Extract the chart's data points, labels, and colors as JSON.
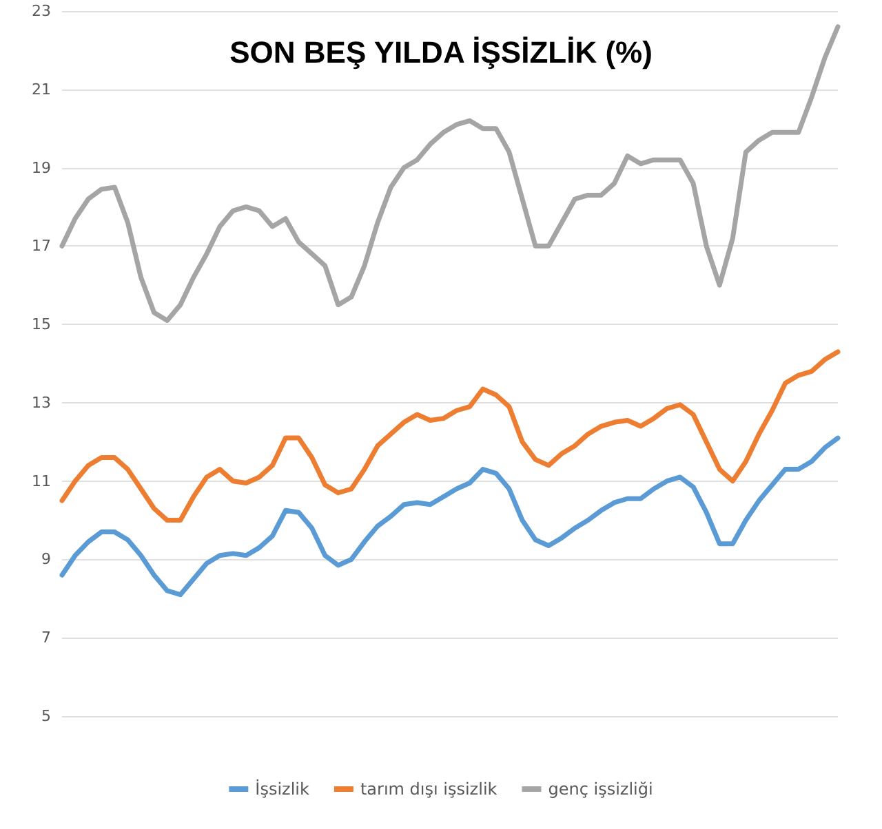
{
  "chart_data": {
    "type": "line",
    "title": "SON BEŞ YILDA İŞSİZLİK (%)",
    "categories": [
      null,
      null,
      null,
      null,
      null,
      null,
      null,
      null,
      null,
      null,
      null,
      null,
      null,
      null,
      null,
      null,
      null,
      null,
      null,
      null,
      null,
      null,
      null,
      null,
      null,
      null,
      null,
      null,
      null,
      null,
      null,
      null,
      null,
      null,
      null,
      null,
      null,
      null,
      null,
      null,
      null,
      null,
      null,
      null,
      null,
      null,
      null,
      null,
      null,
      null,
      null,
      null,
      null,
      null,
      null,
      null,
      null,
      null,
      null,
      null
    ],
    "series": [
      {
        "name": "İşsizlik",
        "color": "#5b9bd5",
        "values": [
          8.6,
          9.1,
          9.45,
          9.7,
          9.7,
          9.5,
          9.1,
          8.6,
          8.2,
          8.1,
          8.5,
          8.9,
          9.1,
          9.15,
          9.1,
          9.3,
          9.6,
          10.25,
          10.2,
          9.8,
          9.1,
          8.85,
          9.0,
          9.45,
          9.85,
          10.1,
          10.4,
          10.45,
          10.4,
          10.6,
          10.8,
          10.95,
          11.3,
          11.2,
          10.8,
          10.0,
          9.5,
          9.35,
          9.55,
          9.8,
          10.0,
          10.25,
          10.45,
          10.55,
          10.55,
          10.8,
          11.0,
          11.1,
          10.85,
          10.2,
          9.4,
          9.4,
          10.0,
          10.5,
          10.9,
          11.3,
          11.3,
          11.5,
          11.85,
          12.1
        ]
      },
      {
        "name": "tarım dışı işsizlik",
        "color": "#ed7d31",
        "values": [
          10.5,
          11.0,
          11.4,
          11.6,
          11.6,
          11.3,
          10.8,
          10.3,
          10.0,
          10.0,
          10.6,
          11.1,
          11.3,
          11.0,
          10.95,
          11.1,
          11.4,
          12.1,
          12.1,
          11.6,
          10.9,
          10.7,
          10.8,
          11.3,
          11.9,
          12.2,
          12.5,
          12.7,
          12.55,
          12.6,
          12.8,
          12.9,
          13.35,
          13.2,
          12.9,
          12.0,
          11.55,
          11.4,
          11.7,
          11.9,
          12.2,
          12.4,
          12.5,
          12.55,
          12.4,
          12.6,
          12.85,
          12.95,
          12.7,
          12.0,
          11.3,
          11.0,
          11.5,
          12.2,
          12.8,
          13.5,
          13.7,
          13.8,
          14.1,
          14.3
        ]
      },
      {
        "name": "genç işsizliği",
        "color": "#a5a5a5",
        "values": [
          17.0,
          17.7,
          18.2,
          18.45,
          18.5,
          17.6,
          16.2,
          15.3,
          15.1,
          15.5,
          16.2,
          16.8,
          17.5,
          17.9,
          18.0,
          17.9,
          17.5,
          17.7,
          17.1,
          16.8,
          16.5,
          15.5,
          15.7,
          16.5,
          17.6,
          18.5,
          19.0,
          19.2,
          19.6,
          19.9,
          20.1,
          20.2,
          20.0,
          20.0,
          19.4,
          18.2,
          17.0,
          17.0,
          17.6,
          18.2,
          18.3,
          18.3,
          18.6,
          19.3,
          19.1,
          19.2,
          19.2,
          19.2,
          18.6,
          17.0,
          16.0,
          17.2,
          19.4,
          19.7,
          19.9,
          19.9,
          19.9,
          20.8,
          21.8,
          22.6
        ]
      }
    ],
    "ylim": [
      5,
      23
    ],
    "yticks": [
      5,
      7,
      9,
      11,
      13,
      15,
      17,
      19,
      21,
      23
    ],
    "grid": "y",
    "legend": "bottom",
    "marker": "none",
    "line_style": "solid",
    "tick_labels": "y"
  }
}
